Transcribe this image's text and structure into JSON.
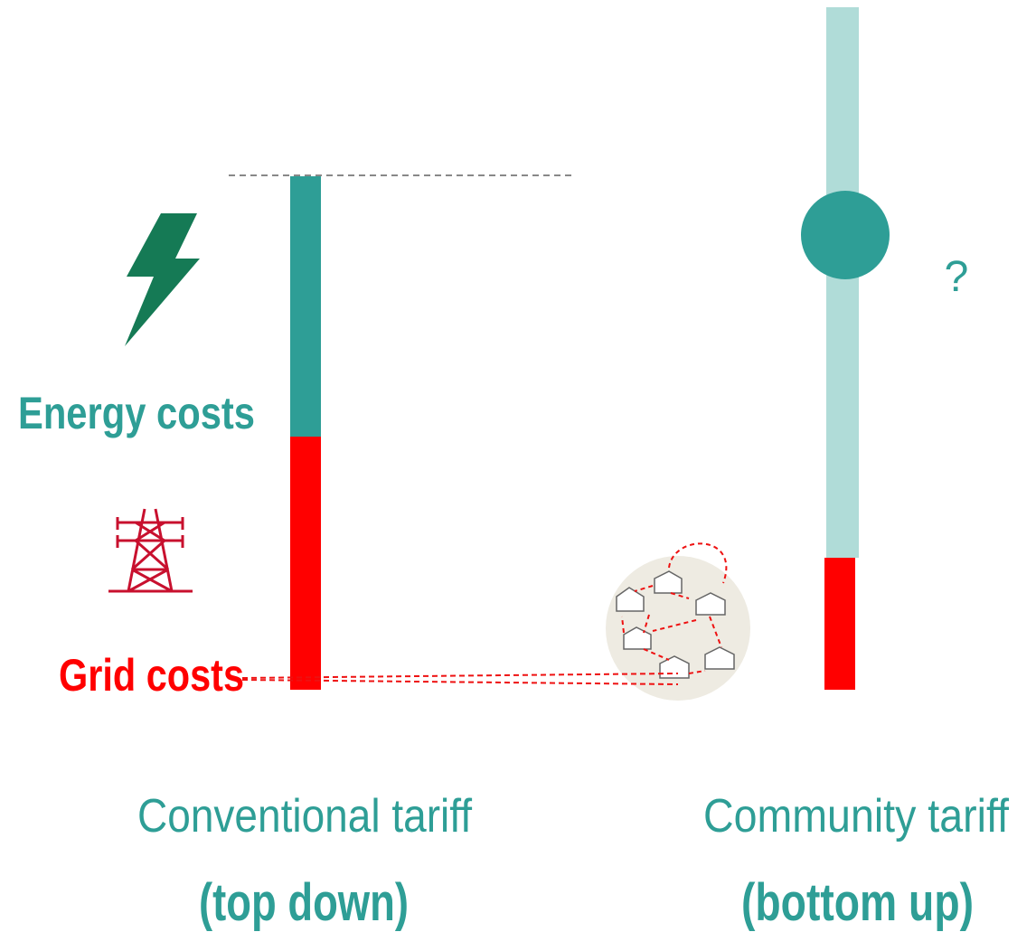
{
  "labels": {
    "energy_costs": "Energy costs",
    "grid_costs": "Grid costs",
    "unknown": "?"
  },
  "columns": [
    {
      "title": "Conventional tariff",
      "subtitle": "(top down)"
    },
    {
      "title": "Community tariff",
      "subtitle": "(bottom up)"
    }
  ]
}
